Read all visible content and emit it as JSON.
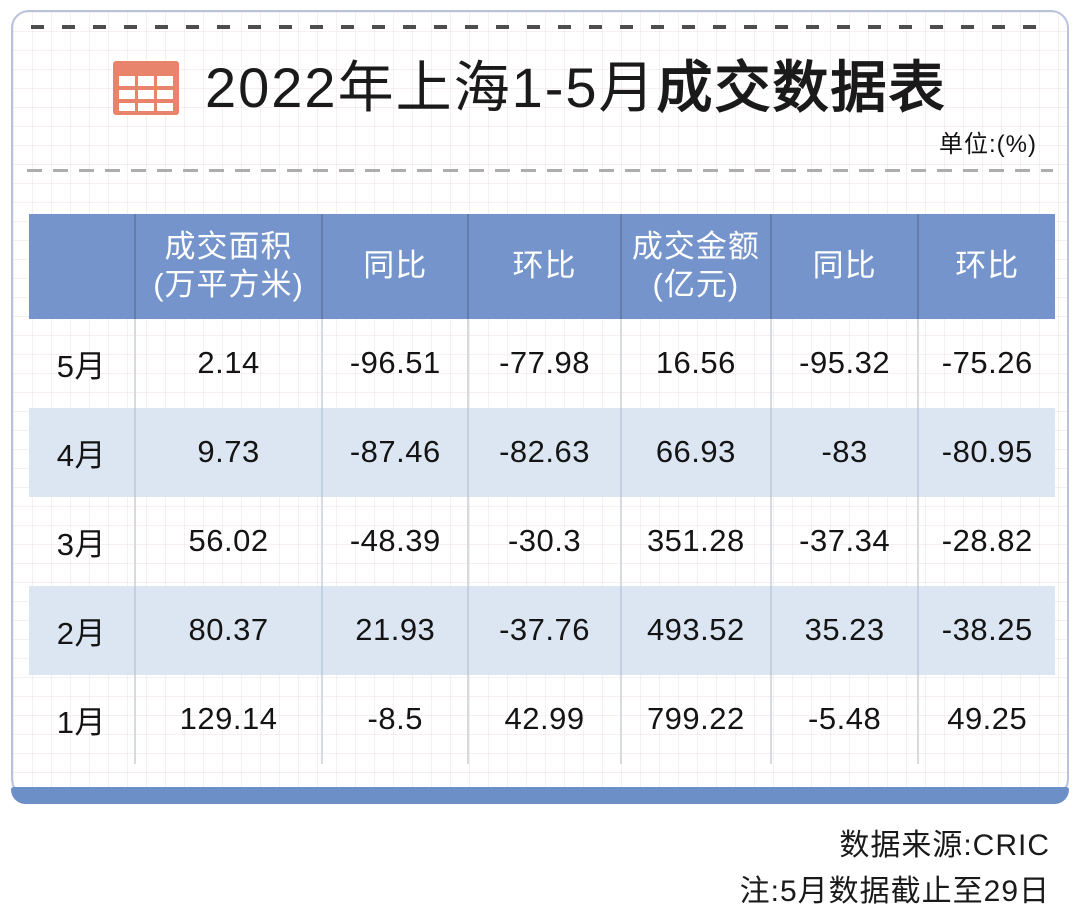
{
  "card": {
    "title_regular": "2022年上海1-5月",
    "title_bold": "成交数据表",
    "unit_label": "单位:(%)"
  },
  "table": {
    "columns": [
      {
        "line1": "",
        "line2": ""
      },
      {
        "line1": "成交面积",
        "line2": "(万平方米)"
      },
      {
        "line1": "同比",
        "line2": ""
      },
      {
        "line1": "环比",
        "line2": ""
      },
      {
        "line1": "成交金额",
        "line2": "(亿元)"
      },
      {
        "line1": "同比",
        "line2": ""
      },
      {
        "line1": "环比",
        "line2": ""
      }
    ],
    "rows": [
      {
        "month": "5月",
        "values": [
          "2.14",
          "-96.51",
          "-77.98",
          "16.56",
          "-95.32",
          "-75.26"
        ]
      },
      {
        "month": "4月",
        "values": [
          "9.73",
          "-87.46",
          "-82.63",
          "66.93",
          "-83",
          "-80.95"
        ]
      },
      {
        "month": "3月",
        "values": [
          "56.02",
          "-48.39",
          "-30.3",
          "351.28",
          "-37.34",
          "-28.82"
        ]
      },
      {
        "month": "2月",
        "values": [
          "80.37",
          "21.93",
          "-37.76",
          "493.52",
          "35.23",
          "-38.25"
        ]
      },
      {
        "month": "1月",
        "values": [
          "129.14",
          "-8.5",
          "42.99",
          "799.22",
          "-5.48",
          "49.25"
        ]
      }
    ]
  },
  "footer": {
    "source": "数据来源:CRIC",
    "note": "注:5月数据截止至29日"
  },
  "colors": {
    "header_blue": "#7494CB",
    "alt_row_blue": "#DCE6F2",
    "icon_salmon": "#E8846C",
    "bottom_bar_blue": "#6D8FC8",
    "card_border": "#B7C3DA"
  },
  "chart_data": {
    "type": "table",
    "title": "2022年上海1-5月成交数据表",
    "unit": "%",
    "columns": [
      "",
      "成交面积(万平方米)",
      "同比",
      "环比",
      "成交金额(亿元)",
      "同比",
      "环比"
    ],
    "rows": [
      [
        "5月",
        2.14,
        -96.51,
        -77.98,
        16.56,
        -95.32,
        -75.26
      ],
      [
        "4月",
        9.73,
        -87.46,
        -82.63,
        66.93,
        -83,
        -80.95
      ],
      [
        "3月",
        56.02,
        -48.39,
        -30.3,
        351.28,
        -37.34,
        -28.82
      ],
      [
        "2月",
        80.37,
        21.93,
        -37.76,
        493.52,
        35.23,
        -38.25
      ],
      [
        "1月",
        129.14,
        -8.5,
        42.99,
        799.22,
        -5.48,
        49.25
      ]
    ],
    "source": "CRIC",
    "note": "5月数据截止至29日",
    "layout": {
      "alternating_row_shading": true,
      "header_background": "#7494CB"
    }
  }
}
